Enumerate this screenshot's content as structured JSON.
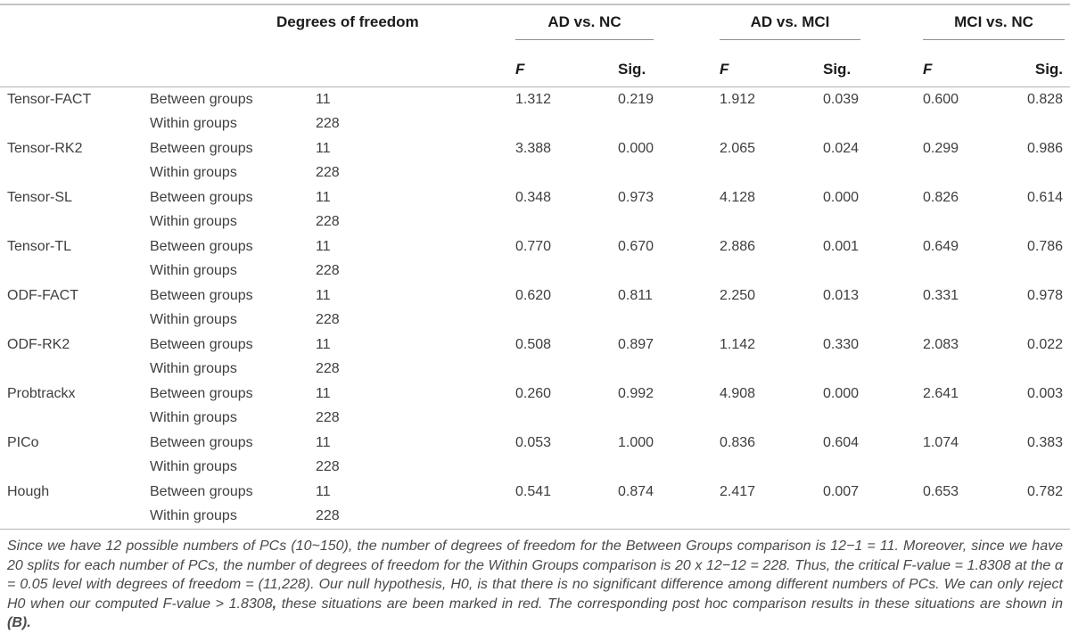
{
  "table": {
    "header": {
      "degrees_of_freedom": "Degrees of freedom",
      "pairs": [
        "AD vs. NC",
        "AD vs. MCI",
        "MCI vs. NC"
      ],
      "f_label": "F",
      "sig_label": "Sig."
    },
    "group_labels": {
      "between": "Between groups",
      "within": "Within groups"
    },
    "degrees_of_freedom": {
      "between": "11",
      "within": "228"
    },
    "methods": [
      {
        "name": "Tensor-FACT",
        "ad_nc": {
          "f": "1.312",
          "sig": "0.219"
        },
        "ad_mci": {
          "f": "1.912",
          "sig": "0.039"
        },
        "mci_nc": {
          "f": "0.600",
          "sig": "0.828"
        }
      },
      {
        "name": "Tensor-RK2",
        "ad_nc": {
          "f": "3.388",
          "sig": "0.000"
        },
        "ad_mci": {
          "f": "2.065",
          "sig": "0.024"
        },
        "mci_nc": {
          "f": "0.299",
          "sig": "0.986"
        }
      },
      {
        "name": "Tensor-SL",
        "ad_nc": {
          "f": "0.348",
          "sig": "0.973"
        },
        "ad_mci": {
          "f": "4.128",
          "sig": "0.000"
        },
        "mci_nc": {
          "f": "0.826",
          "sig": "0.614"
        }
      },
      {
        "name": "Tensor-TL",
        "ad_nc": {
          "f": "0.770",
          "sig": "0.670"
        },
        "ad_mci": {
          "f": "2.886",
          "sig": "0.001"
        },
        "mci_nc": {
          "f": "0.649",
          "sig": "0.786"
        }
      },
      {
        "name": "ODF-FACT",
        "ad_nc": {
          "f": "0.620",
          "sig": "0.811"
        },
        "ad_mci": {
          "f": "2.250",
          "sig": "0.013"
        },
        "mci_nc": {
          "f": "0.331",
          "sig": "0.978"
        }
      },
      {
        "name": "ODF-RK2",
        "ad_nc": {
          "f": "0.508",
          "sig": "0.897"
        },
        "ad_mci": {
          "f": "1.142",
          "sig": "0.330"
        },
        "mci_nc": {
          "f": "2.083",
          "sig": "0.022"
        }
      },
      {
        "name": "Probtrackx",
        "ad_nc": {
          "f": "0.260",
          "sig": "0.992"
        },
        "ad_mci": {
          "f": "4.908",
          "sig": "0.000"
        },
        "mci_nc": {
          "f": "2.641",
          "sig": "0.003"
        }
      },
      {
        "name": "PICo",
        "ad_nc": {
          "f": "0.053",
          "sig": "1.000"
        },
        "ad_mci": {
          "f": "0.836",
          "sig": "0.604"
        },
        "mci_nc": {
          "f": "1.074",
          "sig": "0.383"
        }
      },
      {
        "name": "Hough",
        "ad_nc": {
          "f": "0.541",
          "sig": "0.874"
        },
        "ad_mci": {
          "f": "2.417",
          "sig": "0.007"
        },
        "mci_nc": {
          "f": "0.653",
          "sig": "0.782"
        }
      }
    ]
  },
  "footnote": {
    "segments": [
      {
        "text": "Since we have 12 possible numbers of PCs (10~150), the number of degrees of freedom for the Between Groups comparison is 12−1 = 11. Moreover, since we have 20 splits for each number of PCs, the number of degrees of freedom for the Within Groups comparison is 20 x 12−12 = 228. Thus, the critical F-value = 1.8308 at the α = 0.05 level with degrees of freedom = (11,228). Our null hypothesis, H0, is that there is no significant difference among different numbers of PCs. We can only reject H0 when our computed F-value > 1.8308",
        "bold": false
      },
      {
        "text": ",",
        "bold": true
      },
      {
        "text": " these situations are been marked in red. The corresponding post hoc comparison results in these situations are shown in ",
        "bold": false
      },
      {
        "text": "(B).",
        "bold": true
      }
    ]
  }
}
